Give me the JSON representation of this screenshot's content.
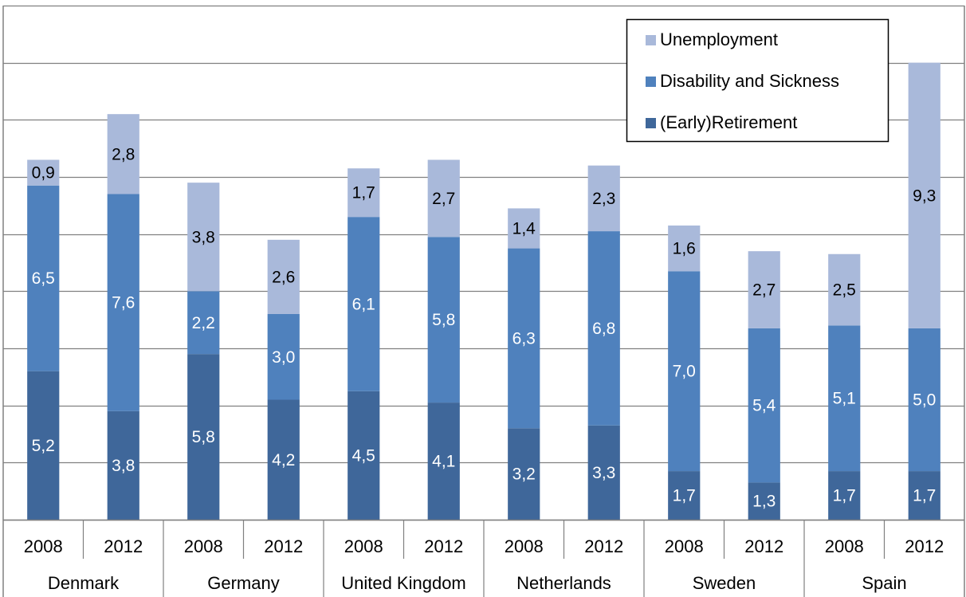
{
  "colors": {
    "unemployment": "#a9b9da",
    "disability": "#4f81bd",
    "retirement": "#3f679a",
    "grid": "#808080",
    "axis": "#808080"
  },
  "chart_data": {
    "type": "bar",
    "stacked": true,
    "x_groups": [
      {
        "country": "Denmark",
        "years": [
          "2008",
          "2012"
        ]
      },
      {
        "country": "Germany",
        "years": [
          "2008",
          "2012"
        ]
      },
      {
        "country": "United Kingdom",
        "years": [
          "2008",
          "2012"
        ]
      },
      {
        "country": "Netherlands",
        "years": [
          "2008",
          "2012"
        ]
      },
      {
        "country": "Sweden",
        "years": [
          "2008",
          "2012"
        ]
      },
      {
        "country": "Spain",
        "years": [
          "2008",
          "2012"
        ]
      }
    ],
    "categories": [
      "Denmark 2008",
      "Denmark 2012",
      "Germany 2008",
      "Germany 2012",
      "United Kingdom 2008",
      "United Kingdom 2012",
      "Netherlands 2008",
      "Netherlands 2012",
      "Sweden 2008",
      "Sweden 2012",
      "Spain 2008",
      "Spain 2012"
    ],
    "series": [
      {
        "name": "(Early)Retirement",
        "key": "retirement",
        "values": [
          5.2,
          3.8,
          5.8,
          4.2,
          4.5,
          4.1,
          3.2,
          3.3,
          1.7,
          1.3,
          1.7,
          1.7
        ],
        "labels": [
          "5,2",
          "3,8",
          "5,8",
          "4,2",
          "4,5",
          "4,1",
          "3,2",
          "3,3",
          "1,7",
          "1,3",
          "1,7",
          "1,7"
        ]
      },
      {
        "name": "Disability and Sickness",
        "key": "disability",
        "values": [
          6.5,
          7.6,
          2.2,
          3.0,
          6.1,
          5.8,
          6.3,
          6.8,
          7.0,
          5.4,
          5.1,
          5.0
        ],
        "labels": [
          "6,5",
          "7,6",
          "2,2",
          "3,0",
          "6,1",
          "5,8",
          "6,3",
          "6,8",
          "7,0",
          "5,4",
          "5,1",
          "5,0"
        ]
      },
      {
        "name": "Unemployment",
        "key": "unemployment",
        "values": [
          0.9,
          2.8,
          3.8,
          2.6,
          1.7,
          2.7,
          1.4,
          2.3,
          1.6,
          2.7,
          2.5,
          9.3
        ],
        "labels": [
          "0,9",
          "2,8",
          "3,8",
          "2,6",
          "1,7",
          "2,7",
          "1,4",
          "2,3",
          "1,6",
          "2,7",
          "2,5",
          "9,3"
        ]
      }
    ],
    "legend_order": [
      "Unemployment",
      "Disability and Sickness",
      "(Early)Retirement"
    ],
    "legend_position": "top-right",
    "ylim": [
      0,
      18
    ],
    "y_grid_step": 2,
    "grid": true,
    "y_tick_labels_shown": false,
    "title": "",
    "xlabel": "",
    "ylabel": ""
  }
}
